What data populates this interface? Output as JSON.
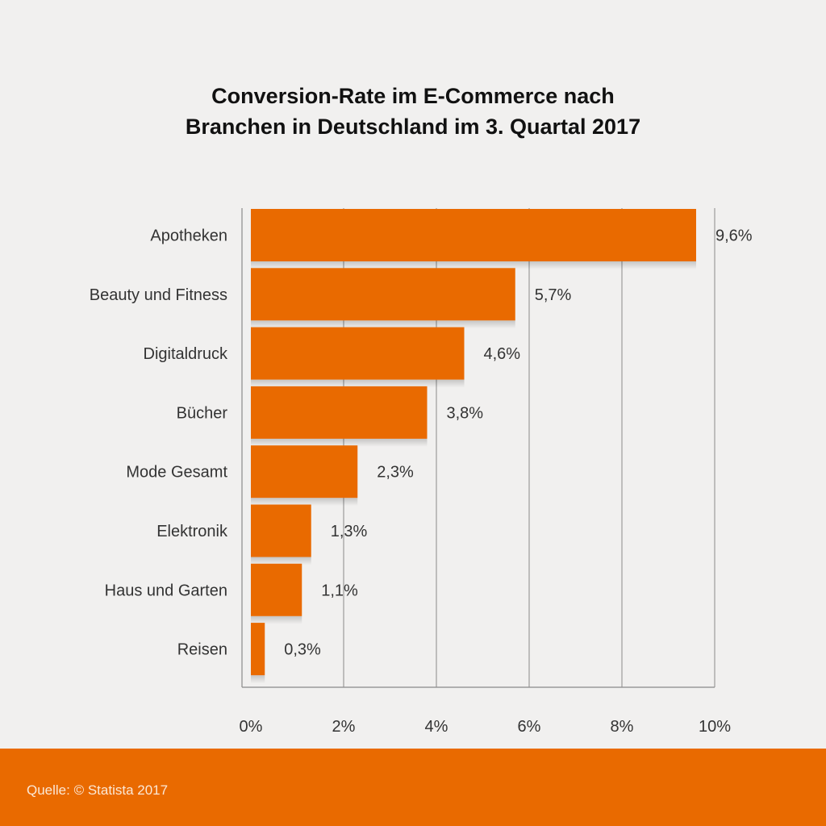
{
  "colors": {
    "background": "#f1f0ef",
    "bar": "#e96a00",
    "footer": "#e96a00",
    "grid": "#8a8a8a"
  },
  "footer": {
    "source": "Quelle: © Statista 2017"
  },
  "chart_data": {
    "type": "bar",
    "orientation": "horizontal",
    "title": "Conversion-Rate im E-Commerce nach Branchen in Deutschland im 3. Quartal 2017",
    "title_lines": [
      "Conversion-Rate im E-Commerce nach",
      "Branchen in Deutschland im 3. Quartal 2017"
    ],
    "categories": [
      "Apotheken",
      "Beauty und Fitness",
      "Digitaldruck",
      "Bücher",
      "Mode Gesamt",
      "Elektronik",
      "Haus und Garten",
      "Reisen"
    ],
    "values": [
      9.6,
      5.7,
      4.6,
      3.8,
      2.3,
      1.3,
      1.1,
      0.3
    ],
    "value_labels": [
      "9,6%",
      "5,7%",
      "4,6%",
      "3,8%",
      "2,3%",
      "1,3%",
      "1,1%",
      "0,3%"
    ],
    "xlabel": "",
    "ylabel": "",
    "xlim": [
      0,
      10
    ],
    "xticks": [
      0,
      2,
      4,
      6,
      8,
      10
    ],
    "xtick_labels": [
      "0%",
      "2%",
      "4%",
      "6%",
      "8%",
      "10%"
    ],
    "grid": true,
    "legend": "none"
  }
}
